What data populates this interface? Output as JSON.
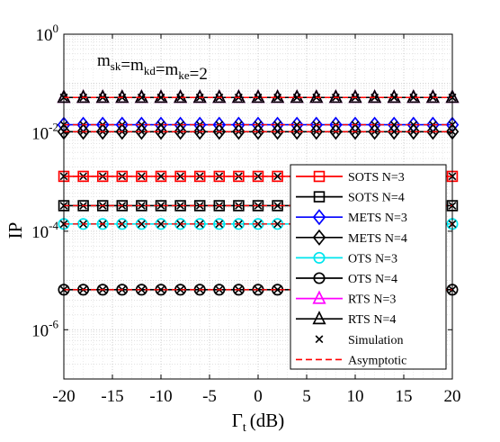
{
  "chart_data": {
    "type": "line",
    "xlabel_main": "Γ",
    "xlabel_sub": "t",
    "xlabel_unit": "(dB)",
    "ylabel": "IP",
    "annotation": {
      "parts": [
        {
          "text": "m",
          "sub": "sk"
        },
        {
          "text": "=m",
          "sub": "kd"
        },
        {
          "text": "=m",
          "sub": "ke"
        },
        {
          "text": "=2",
          "sub": ""
        }
      ]
    },
    "xlim": [
      -20,
      20
    ],
    "xticks": [
      -20,
      -15,
      -10,
      -5,
      0,
      5,
      10,
      15,
      20
    ],
    "xtick_labels": [
      "-20",
      "-15",
      "-10",
      "-5",
      "0",
      "5",
      "10",
      "15",
      "20"
    ],
    "yscale": "log",
    "ylim": [
      1e-07,
      1
    ],
    "yticks": [
      {
        "value": 1,
        "base": "10",
        "exp": "0"
      },
      {
        "value": 0.01,
        "base": "10",
        "exp": "-2"
      },
      {
        "value": 0.0001,
        "base": "10",
        "exp": "-4"
      },
      {
        "value": 1e-06,
        "base": "10",
        "exp": "-6"
      }
    ],
    "grid": true,
    "legend_position": "bottom-right",
    "marker_x": [
      -20,
      -18,
      -16,
      -14,
      -12,
      -10,
      -8,
      -6,
      -4,
      -2,
      0,
      2,
      4,
      6,
      8,
      10,
      12,
      14,
      16,
      18,
      20
    ],
    "series": [
      {
        "name": "SOTS N=3",
        "value": 0.0013,
        "color": "#ff0000",
        "marker": "square"
      },
      {
        "name": "SOTS N=4",
        "value": 0.00033,
        "color": "#000000",
        "marker": "square"
      },
      {
        "name": "METS N=3",
        "value": 0.0145,
        "color": "#0000ff",
        "marker": "diamond"
      },
      {
        "name": "METS N=4",
        "value": 0.0105,
        "color": "#000000",
        "marker": "diamond"
      },
      {
        "name": "OTS N=3",
        "value": 0.00014,
        "color": "#00e5ee",
        "marker": "circle"
      },
      {
        "name": "OTS N=4",
        "value": 6.5e-06,
        "color": "#000000",
        "marker": "circle"
      },
      {
        "name": "RTS N=3",
        "value": 0.052,
        "color": "#ff00ff",
        "marker": "triangle"
      },
      {
        "name": "RTS N=4",
        "value": 0.052,
        "color": "#000000",
        "marker": "triangle"
      }
    ],
    "simulation_label": "Simulation",
    "asymptotic_label": "Asymptotic",
    "asymptotic_color": "#ff0000"
  }
}
